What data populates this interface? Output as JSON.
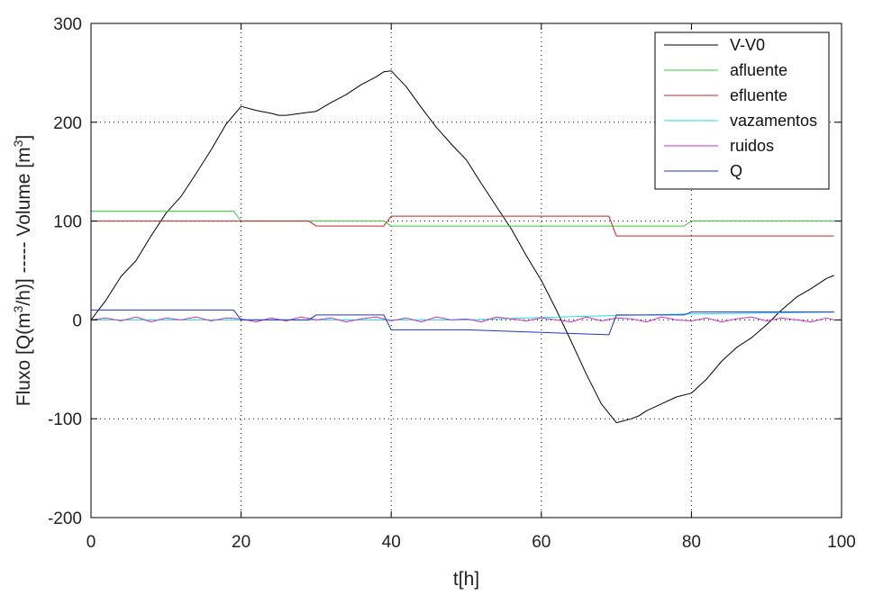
{
  "chart_data": {
    "type": "line",
    "xlabel": "t[h]",
    "ylabel": {
      "prefix": "Fluxo [Q(m",
      "sup1": "3",
      "middle": "/h)] ----- Volume [m",
      "sup2": "3",
      "suffix": "]"
    },
    "xlim": [
      0,
      100
    ],
    "ylim": [
      -200,
      300
    ],
    "xticks": [
      0,
      20,
      40,
      60,
      80,
      100
    ],
    "yticks": [
      -200,
      -100,
      0,
      100,
      200,
      300
    ],
    "grid": true,
    "legend_position": "top-right",
    "series": [
      {
        "name": "V-V0",
        "color": "#000000",
        "x": [
          0,
          1,
          2,
          4,
          6,
          8,
          10,
          12,
          14,
          16,
          18,
          20,
          22,
          24,
          25,
          26,
          28,
          29,
          30,
          32,
          34,
          36,
          38,
          39,
          40,
          42,
          44,
          46,
          48,
          50,
          52,
          54,
          56,
          58,
          60,
          62,
          64,
          66,
          68,
          70,
          72,
          73,
          74,
          76,
          78,
          80,
          82,
          84,
          86,
          88,
          90,
          92,
          94,
          96,
          98,
          99
        ],
        "y": [
          0,
          10,
          20,
          44,
          60,
          85,
          108,
          125,
          148,
          172,
          198,
          216,
          212,
          209,
          207,
          207,
          209,
          210,
          211,
          220,
          228,
          238,
          246,
          251,
          252,
          236,
          215,
          195,
          178,
          162,
          138,
          115,
          92,
          65,
          40,
          10,
          -22,
          -55,
          -85,
          -104,
          -100,
          -97,
          -92,
          -85,
          -78,
          -74,
          -60,
          -42,
          -28,
          -18,
          -5,
          10,
          23,
          32,
          42,
          45
        ]
      },
      {
        "name": "afluente",
        "color": "#33cc33",
        "x": [
          0,
          19,
          20,
          39,
          40,
          79,
          80,
          99
        ],
        "y": [
          110,
          110,
          100,
          100,
          95,
          95,
          100,
          100
        ]
      },
      {
        "name": "efluente",
        "color": "#cc2222",
        "x": [
          0,
          29,
          30,
          39,
          40,
          69,
          70,
          99
        ],
        "y": [
          100,
          100,
          95,
          95,
          105,
          105,
          85,
          85
        ]
      },
      {
        "name": "vazamentos",
        "color": "#22dddd",
        "x": [
          0,
          50,
          60,
          70,
          80,
          90,
          99
        ],
        "y": [
          0,
          0,
          2.5,
          4.5,
          6,
          7,
          8
        ]
      },
      {
        "name": "ruidos",
        "color": "#cc33cc",
        "x": [
          0,
          2,
          4,
          6,
          8,
          10,
          12,
          14,
          16,
          18,
          20,
          22,
          24,
          26,
          28,
          30,
          32,
          34,
          36,
          38,
          40,
          42,
          44,
          46,
          48,
          50,
          52,
          54,
          56,
          58,
          60,
          62,
          64,
          66,
          68,
          70,
          72,
          74,
          76,
          78,
          80,
          82,
          84,
          86,
          88,
          90,
          92,
          94,
          96,
          98,
          99
        ],
        "y": [
          0,
          2,
          -1,
          3,
          -2,
          2,
          0,
          3,
          -1,
          2,
          1,
          -2,
          2,
          -1,
          3,
          0,
          2,
          -2,
          1,
          3,
          -1,
          2,
          -2,
          3,
          0,
          1,
          -2,
          3,
          1,
          -1,
          2,
          0,
          -2,
          3,
          -1,
          2,
          1,
          -2,
          3,
          0,
          -1,
          2,
          -2,
          1,
          3,
          -1,
          2,
          0,
          -2,
          2,
          0
        ]
      },
      {
        "name": "Q",
        "color": "#2233cc",
        "x": [
          0,
          19,
          20,
          29,
          30,
          39,
          40,
          50,
          69,
          70,
          79,
          80,
          99
        ],
        "y": [
          10,
          10,
          0,
          0,
          5,
          5,
          -10,
          -10,
          -15,
          5,
          5,
          8,
          8
        ]
      }
    ]
  }
}
